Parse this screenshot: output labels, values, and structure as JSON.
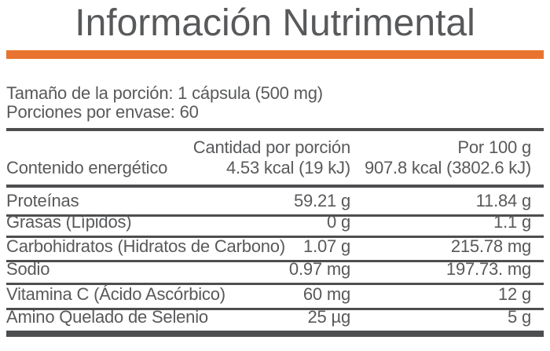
{
  "title": "Información Nutrimental",
  "colors": {
    "accent_orange": "#e8742f",
    "text_gray": "#58595b",
    "line_gray": "#4d4e50"
  },
  "serving": {
    "size_line": "Tamaño de la porción: 1 cápsula (500 mg)",
    "servings_line": "Porciones por envase: 60"
  },
  "table": {
    "col_per_serving_header": "Cantidad por porción",
    "col_per_100g_header": "Por 100 g",
    "energy": {
      "label": "Contenido energético",
      "per_serving": "4.53 kcal (19 kJ)",
      "per_100g": "907.8 kcal (3802.6 kJ)"
    },
    "rows": [
      {
        "label": "Proteínas",
        "per_serving": "59.21 g",
        "per_100g": "11.84 g"
      },
      {
        "label": "Grasas (Lípidos)",
        "per_serving": "0 g",
        "per_100g": "1.1 g"
      },
      {
        "label": "Carbohidratos (Hidratos de Carbono)",
        "per_serving": "1.07 g",
        "per_100g": "215.78 mg"
      },
      {
        "label": "Sodio",
        "per_serving": "0.97 mg",
        "per_100g": "197.73. mg"
      },
      {
        "label": "Vitamina C (Ácido Ascórbico)",
        "per_serving": "60 mg",
        "per_100g": "12 g"
      },
      {
        "label": "Amino Quelado de Selenio",
        "per_serving": "25 µg",
        "per_100g": "5 g"
      }
    ]
  }
}
